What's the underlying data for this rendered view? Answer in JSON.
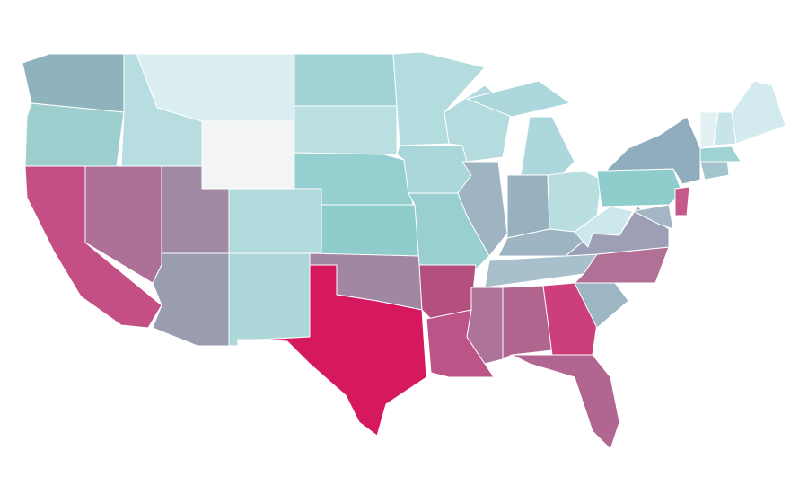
{
  "map": {
    "regions": [
      {
        "color": "#8fb3bc"
      },
      {
        "color": "#9ecfcf"
      },
      {
        "color": "#c34f84"
      },
      {
        "color": "#b7dde0"
      },
      {
        "color": "#dbeff2"
      },
      {
        "color": "#f2f4f5"
      },
      {
        "color": "#ad7198"
      },
      {
        "color": "#a18aa3"
      },
      {
        "color": "#9a9caf"
      },
      {
        "color": "#b0dadc"
      },
      {
        "color": "#aed7da"
      },
      {
        "color": "#a1d2d4"
      },
      {
        "color": "#b9dfe0"
      },
      {
        "color": "#96cfd0"
      },
      {
        "color": "#8fcccc"
      },
      {
        "color": "#a287a3"
      },
      {
        "color": "#d6195f"
      },
      {
        "color": "#b2dcde"
      },
      {
        "color": "#aad8da"
      },
      {
        "color": "#9acfd2"
      },
      {
        "color": "#b44f80"
      },
      {
        "color": "#bd5488"
      },
      {
        "color": "#b4dbde"
      },
      {
        "color": "#9fb4c2"
      },
      {
        "color": "#acd8dd"
      },
      {
        "color": "#97b1bf"
      },
      {
        "color": "#b9dee0"
      },
      {
        "color": "#9db5c2"
      },
      {
        "color": "#a7c0cc"
      },
      {
        "color": "#ae7398"
      },
      {
        "color": "#b0658e"
      },
      {
        "color": "#cc3f7c"
      },
      {
        "color": "#b06690"
      },
      {
        "color": "#9cb6c4"
      },
      {
        "color": "#b17095"
      },
      {
        "color": "#9c9fb5"
      },
      {
        "color": "#cce8ea"
      },
      {
        "color": "#8fcccc"
      },
      {
        "color": "#8fadbd"
      },
      {
        "color": "#c55a8a"
      },
      {
        "color": "#a5b5c5"
      },
      {
        "color": "#a3c4cc"
      },
      {
        "color": "#9fd2d4"
      },
      {
        "color": "#e3f1f3"
      },
      {
        "color": "#c7e5e8"
      },
      {
        "color": "#d3ebee"
      }
    ]
  }
}
